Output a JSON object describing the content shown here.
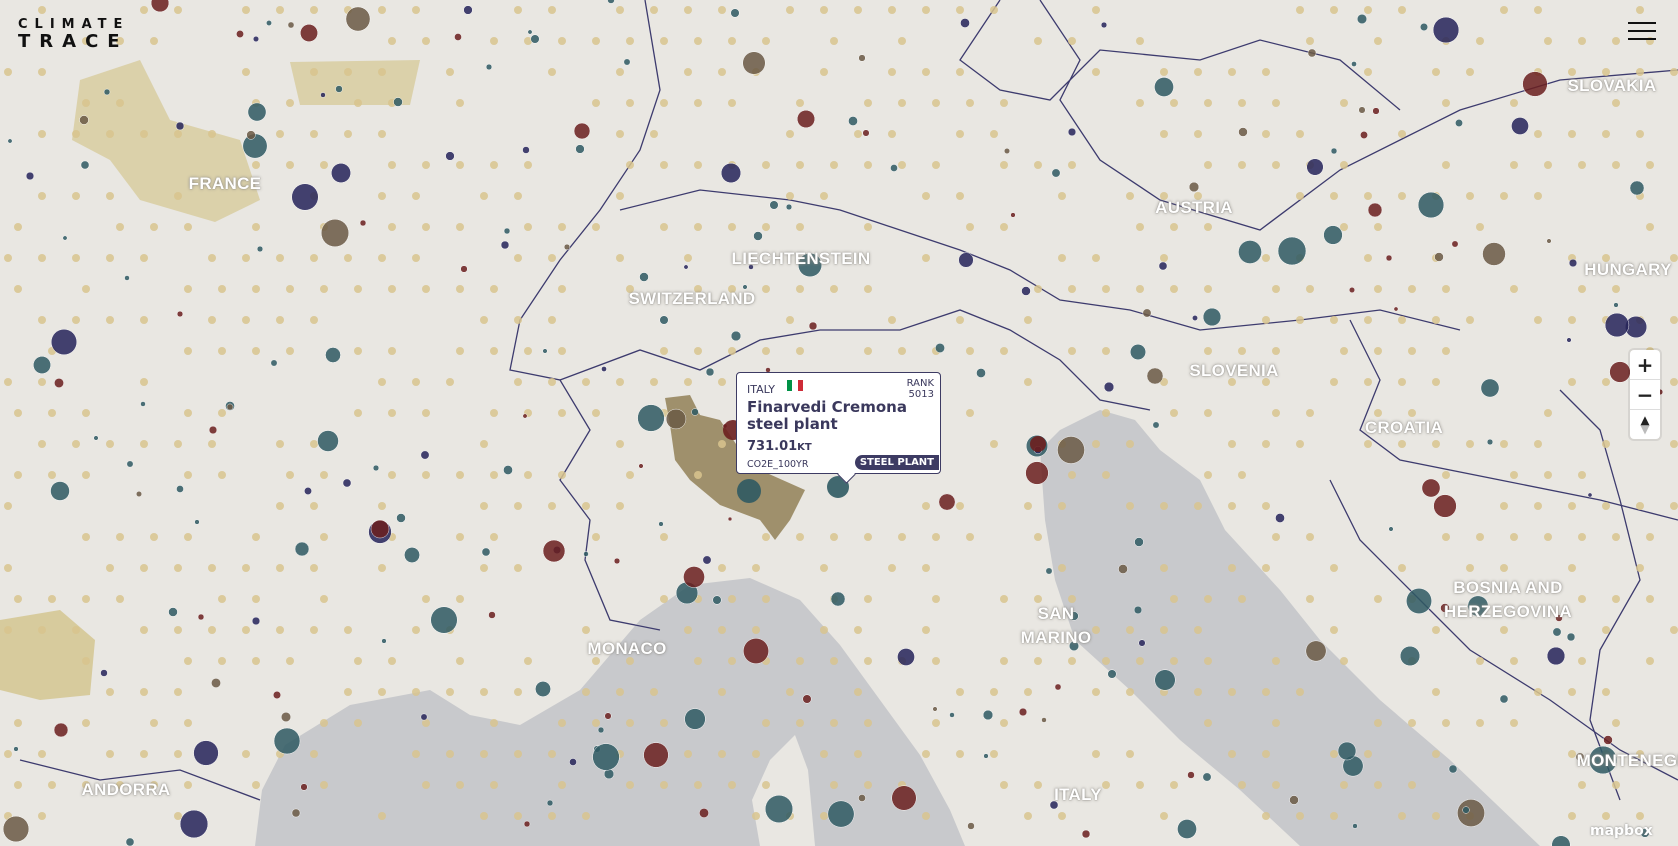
{
  "app": {
    "logo_line1": "CLIMATE",
    "logo_line2": "TRACE",
    "menu_icon": "hamburger-icon"
  },
  "map": {
    "land_color": "#e9e7e2",
    "sea_color": "#c8c9cc",
    "border_color": "#3d3b6e",
    "dot_colors": {
      "grid": "#d8c48e",
      "teal": "#2f5a63",
      "dark_red": "#6b1f1f",
      "navy": "#26245a",
      "brown": "#6b5a45"
    },
    "highlight_region_color": "#8c7a4f",
    "labels": [
      {
        "text": "FRANCE"
      },
      {
        "text": "LIECHTENSTEIN"
      },
      {
        "text": "SWITZERLAND"
      },
      {
        "text": "AUSTRIA"
      },
      {
        "text": "SLOVAKIA"
      },
      {
        "text": "HUNGARY"
      },
      {
        "text": "SLOVENIA"
      },
      {
        "text": "CROATIA"
      },
      {
        "text": "BOSNIA AND HERZEGOVINA"
      },
      {
        "text": "SAN MARINO"
      },
      {
        "text": "MONACO"
      },
      {
        "text": "ANDORRA"
      },
      {
        "text": "ITALY"
      },
      {
        "text": "MONTENEGRO"
      }
    ],
    "attribution": "mapbox"
  },
  "controls": {
    "zoom_in": "+",
    "zoom_out": "−",
    "compass_up": "▲",
    "compass_down": "▼"
  },
  "tooltip": {
    "country": "ITALY",
    "flag": [
      "#009246",
      "#ffffff",
      "#ce2b37"
    ],
    "rank_label": "RANK",
    "rank_value": "5013",
    "name": "Finarvedi Cremona steel plant",
    "value": "731.01",
    "value_unit": "KT",
    "gas": "CO2E_100YR",
    "sector": "STEEL PLANT"
  }
}
